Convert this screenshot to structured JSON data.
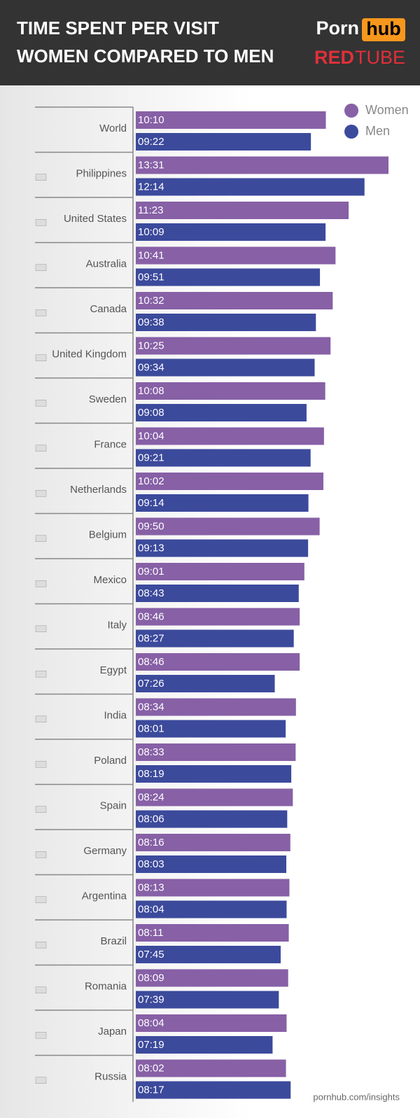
{
  "logo": {
    "porn": "Porn",
    "hub": "hub",
    "red": "RED",
    "tube": "TUBE"
  },
  "source": "pornhub.com/insights",
  "chart_data": {
    "type": "bar",
    "orientation": "horizontal",
    "title": "TIME SPENT PER VISIT",
    "subtitle": "WOMEN COMPARED TO MEN",
    "legend": "top-right",
    "categories": [
      "World",
      "Philippines",
      "United States",
      "Australia",
      "Canada",
      "United Kingdom",
      "Sweden",
      "France",
      "Netherlands",
      "Belgium",
      "Mexico",
      "Italy",
      "Egypt",
      "India",
      "Poland",
      "Spain",
      "Germany",
      "Argentina",
      "Brazil",
      "Romania",
      "Japan",
      "Russia"
    ],
    "series": [
      {
        "name": "Women",
        "color": "#8760a6",
        "values": [
          610,
          811,
          683,
          641,
          632,
          625,
          608,
          604,
          602,
          590,
          541,
          526,
          526,
          514,
          513,
          504,
          496,
          493,
          491,
          489,
          484,
          482
        ],
        "value_labels": [
          "10:10",
          "13:31",
          "11:23",
          "10:41",
          "10:32",
          "10:25",
          "10:08",
          "10:04",
          "10:02",
          "09:50",
          "09:01",
          "08:46",
          "08:46",
          "08:34",
          "08:33",
          "08:24",
          "08:16",
          "08:13",
          "08:11",
          "08:09",
          "08:04",
          "08:02"
        ]
      },
      {
        "name": "Men",
        "color": "#3c4a9c",
        "values": [
          562,
          734,
          609,
          591,
          578,
          574,
          548,
          561,
          554,
          553,
          523,
          507,
          446,
          481,
          499,
          486,
          483,
          484,
          465,
          459,
          439,
          497
        ],
        "value_labels": [
          "09:22",
          "12:14",
          "10:09",
          "09:51",
          "09:38",
          "09:34",
          "09:08",
          "09:21",
          "09:14",
          "09:13",
          "08:43",
          "08:27",
          "07:26",
          "08:01",
          "08:19",
          "08:06",
          "08:03",
          "08:04",
          "07:45",
          "07:39",
          "07:19",
          "08:17"
        ]
      }
    ]
  }
}
